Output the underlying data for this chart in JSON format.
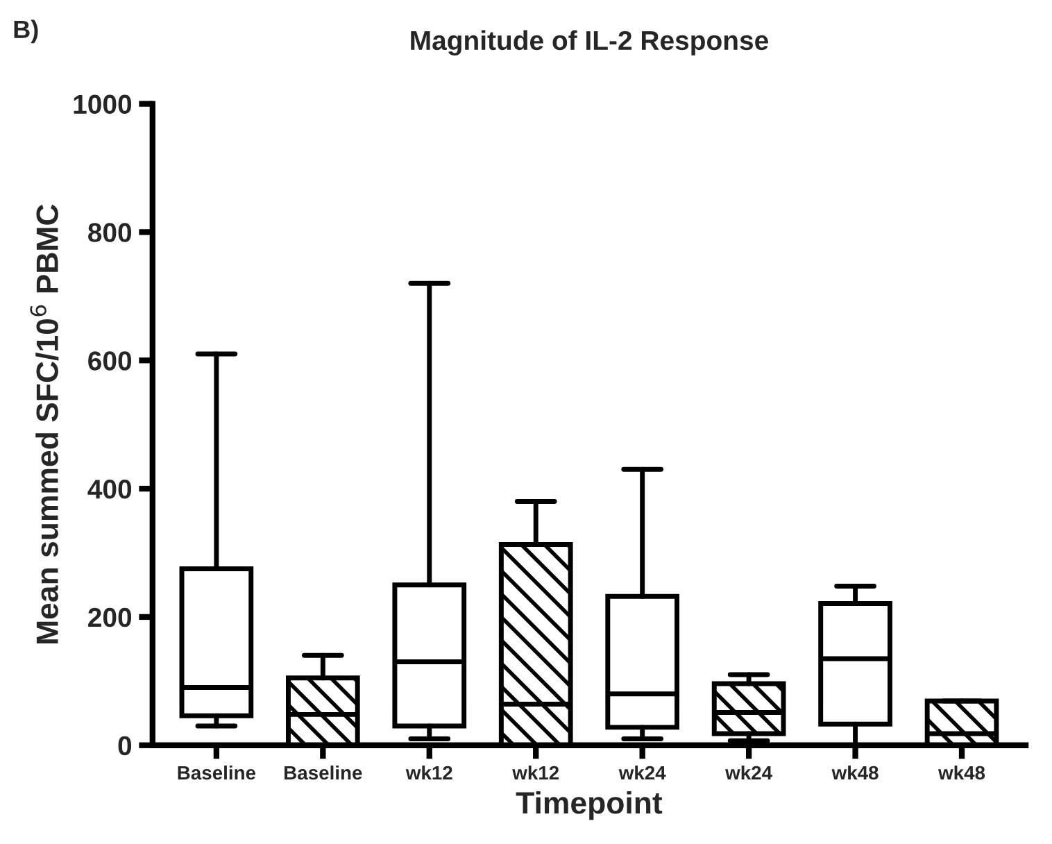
{
  "chart_data": {
    "type": "box",
    "title": "Magnitude of IL-2 Response",
    "xlabel": "Timepoint",
    "ylabel": "Mean summed SFC/10$^{6}$ PBMC",
    "annotations": [
      "B)"
    ],
    "categories": [
      "Baseline",
      "Baseline",
      "wk12",
      "wk12",
      "wk24",
      "wk24",
      "wk48",
      "wk48"
    ],
    "ylim": [
      0,
      1000
    ],
    "yticks": [
      0,
      200,
      400,
      600,
      800,
      1000
    ],
    "grid": false,
    "legend": false,
    "series": [
      {
        "color": "#000000",
        "boxes": [
          {
            "low": 30,
            "q1": 46,
            "median": 90,
            "q3": 275,
            "high": 610
          },
          null,
          {
            "low": 10,
            "q1": 30,
            "median": 130,
            "q3": 250,
            "high": 720
          },
          null,
          {
            "low": 10,
            "q1": 28,
            "median": 80,
            "q3": 232,
            "high": 430
          },
          null,
          {
            "low": 0,
            "q1": 33,
            "median": 135,
            "q3": 221,
            "high": 248
          },
          null
        ]
      },
      {
        "color": "#000000",
        "boxes": [
          null,
          {
            "low": 0,
            "q1": 0,
            "median": 48,
            "q3": 105,
            "high": 140
          },
          null,
          {
            "low": 0,
            "q1": 0,
            "median": 64,
            "q3": 313,
            "high": 380
          },
          null,
          {
            "low": 7,
            "q1": 18,
            "median": 51,
            "q3": 96,
            "high": 110
          },
          null,
          {
            "low": 0,
            "q1": 0,
            "median": 18,
            "q3": 69,
            "high": 69
          }
        ]
      }
    ]
  }
}
